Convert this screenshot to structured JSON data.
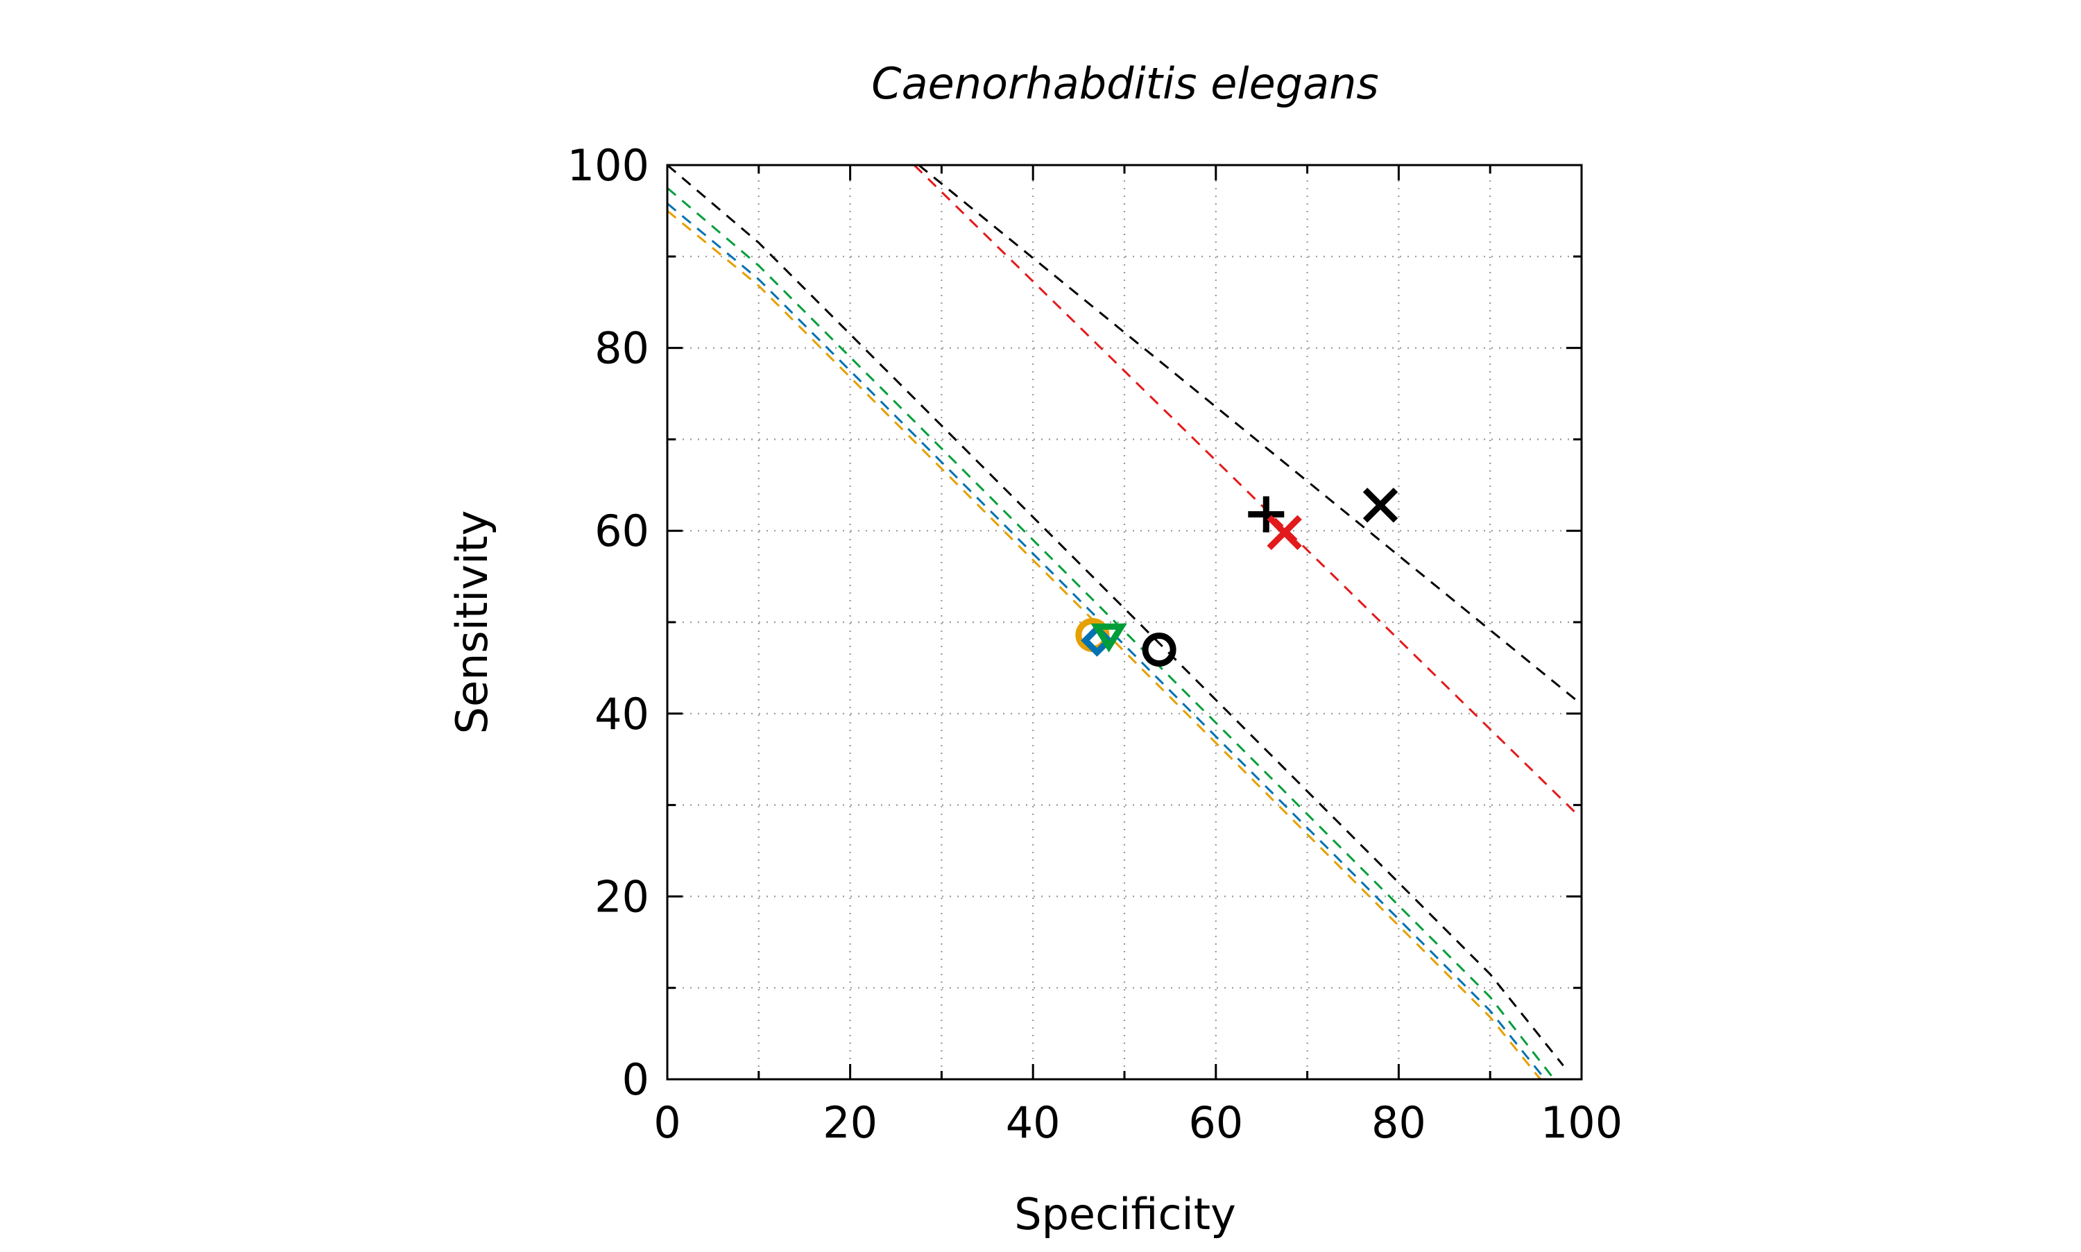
{
  "chart_data": {
    "type": "scatter",
    "title": "Caenorhabditis elegans",
    "xlabel": "Specificity",
    "ylabel": "Sensitivity",
    "xlim": [
      0,
      100
    ],
    "ylim": [
      0,
      100
    ],
    "xticks": [
      0,
      20,
      40,
      60,
      80,
      100
    ],
    "yticks": [
      0,
      20,
      40,
      60,
      80,
      100
    ],
    "minor_ticks": [
      10,
      30,
      50,
      70,
      90
    ],
    "grid": true,
    "legend": "none",
    "series": [
      {
        "marker": "circle",
        "color": "#000000",
        "points": [
          [
            53.8,
            47.0
          ]
        ]
      },
      {
        "marker": "circle",
        "color": "#e69f00",
        "points": [
          [
            46.5,
            48.6
          ]
        ]
      },
      {
        "marker": "diamond",
        "color": "#0072b2",
        "points": [
          [
            47.0,
            48.0
          ]
        ]
      },
      {
        "marker": "tri_down",
        "color": "#009e3a",
        "points": [
          [
            48.3,
            48.7
          ]
        ]
      },
      {
        "marker": "plus",
        "color": "#000000",
        "points": [
          [
            65.5,
            61.8
          ]
        ]
      },
      {
        "marker": "x",
        "color": "#e31a1c",
        "points": [
          [
            67.5,
            59.8
          ]
        ]
      },
      {
        "marker": "x",
        "color": "#000000",
        "points": [
          [
            78.0,
            62.8
          ]
        ]
      }
    ],
    "iso_lines": [
      {
        "color": "#000000",
        "points": [
          [
            27.5,
            100
          ],
          [
            100,
            41.0
          ]
        ]
      },
      {
        "color": "#e31a1c",
        "points": [
          [
            27.0,
            100
          ],
          [
            99.5,
            29.0
          ]
        ]
      },
      {
        "color": "#000000",
        "points": [
          [
            0,
            100
          ],
          [
            10,
            91.5
          ],
          [
            20,
            81.5
          ],
          [
            30,
            71.5
          ],
          [
            40,
            61.5
          ],
          [
            50,
            51.5
          ],
          [
            60,
            41.5
          ],
          [
            70,
            31.5
          ],
          [
            80,
            21.5
          ],
          [
            90,
            11.5
          ],
          [
            98,
            1.5
          ]
        ]
      },
      {
        "color": "#009e3a",
        "points": [
          [
            0,
            97.5
          ],
          [
            10,
            89.0
          ],
          [
            20,
            79.0
          ],
          [
            30,
            69.0
          ],
          [
            40,
            59.0
          ],
          [
            50,
            49.0
          ],
          [
            60,
            39.0
          ],
          [
            70,
            29.0
          ],
          [
            80,
            19.0
          ],
          [
            90,
            9.0
          ],
          [
            97,
            0
          ]
        ]
      },
      {
        "color": "#0072b2",
        "points": [
          [
            0,
            95.8
          ],
          [
            10,
            87.5
          ],
          [
            20,
            77.5
          ],
          [
            30,
            67.5
          ],
          [
            40,
            57.5
          ],
          [
            50,
            47.5
          ],
          [
            60,
            37.5
          ],
          [
            70,
            27.5
          ],
          [
            80,
            17.5
          ],
          [
            90,
            7.5
          ],
          [
            96,
            0
          ]
        ]
      },
      {
        "color": "#e69f00",
        "points": [
          [
            0,
            95.0
          ],
          [
            10,
            86.8
          ],
          [
            20,
            76.8
          ],
          [
            30,
            66.8
          ],
          [
            40,
            56.8
          ],
          [
            50,
            46.8
          ],
          [
            60,
            36.8
          ],
          [
            70,
            26.8
          ],
          [
            80,
            16.8
          ],
          [
            90,
            6.8
          ],
          [
            95.5,
            0
          ]
        ]
      }
    ]
  }
}
